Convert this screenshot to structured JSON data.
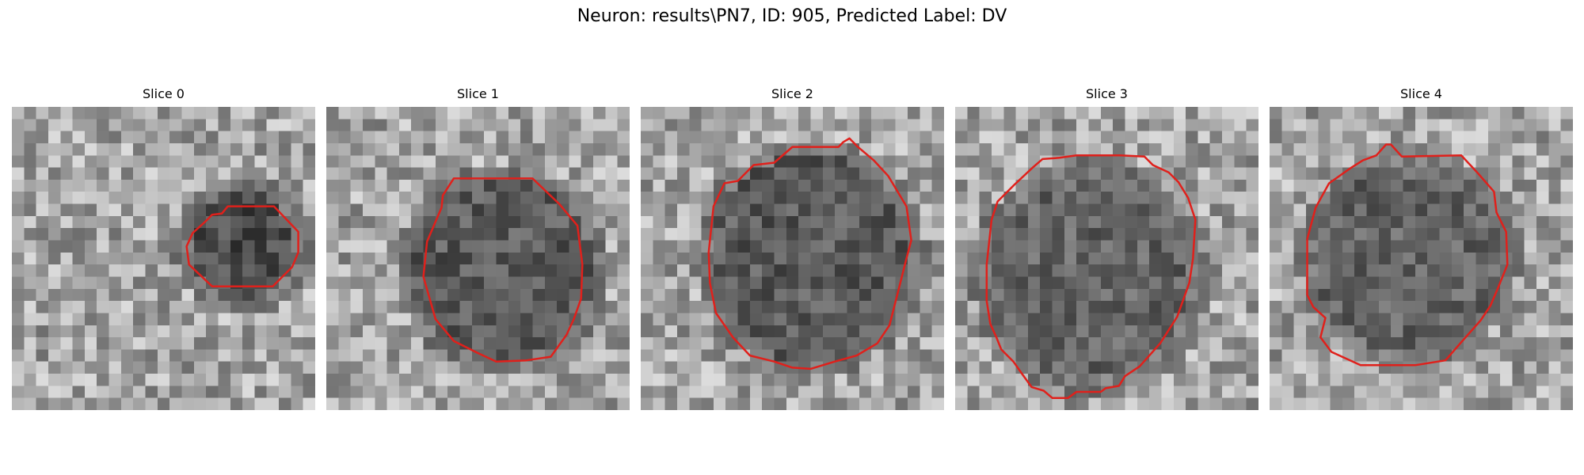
{
  "figure": {
    "title": "Neuron: results\\PN7, ID: 905, Predicted Label: DV",
    "contour_color": "#e0201b",
    "colormap": "gray"
  },
  "slices": [
    {
      "label": "Slice 0",
      "contour": [
        [
          15.9,
          9.5
        ],
        [
          14.9,
          10.4
        ],
        [
          14.4,
          11.5
        ],
        [
          14.6,
          13
        ],
        [
          16.5,
          14.8
        ],
        [
          21.5,
          14.8
        ],
        [
          23.1,
          13.2
        ],
        [
          23.6,
          12
        ],
        [
          23.6,
          10.3
        ],
        [
          21.6,
          8.2
        ],
        [
          17.8,
          8.2
        ],
        [
          17.3,
          8.8
        ],
        [
          16.5,
          8.9
        ]
      ]
    },
    {
      "label": "Slice 1",
      "contour": [
        [
          9.5,
          8.3
        ],
        [
          8.3,
          11.1
        ],
        [
          8,
          14
        ],
        [
          9,
          17.5
        ],
        [
          10.5,
          19.3
        ],
        [
          12.5,
          20.3
        ],
        [
          14,
          21
        ],
        [
          16.5,
          20.9
        ],
        [
          18.5,
          20.6
        ],
        [
          19.8,
          18.8
        ],
        [
          20.4,
          17.5
        ],
        [
          21,
          15.8
        ],
        [
          21.1,
          13
        ],
        [
          20.7,
          9.8
        ],
        [
          19.2,
          8
        ],
        [
          17,
          5.9
        ],
        [
          10.5,
          5.9
        ],
        [
          9.6,
          7.3
        ]
      ]
    },
    {
      "label": "Slice 2",
      "contour": [
        [
          6.9,
          6.3
        ],
        [
          6,
          8.2
        ],
        [
          5.6,
          12
        ],
        [
          5.7,
          14.5
        ],
        [
          6.2,
          17
        ],
        [
          7.6,
          19
        ],
        [
          9,
          20.5
        ],
        [
          11,
          21
        ],
        [
          12.5,
          21.5
        ],
        [
          14,
          21.6
        ],
        [
          16,
          21
        ],
        [
          17.8,
          20.5
        ],
        [
          19.5,
          19.5
        ],
        [
          20.5,
          18
        ],
        [
          21.4,
          14.5
        ],
        [
          21.9,
          12.5
        ],
        [
          22.3,
          11
        ],
        [
          21.9,
          8.2
        ],
        [
          20.4,
          5.7
        ],
        [
          19.2,
          4.4
        ],
        [
          17.9,
          3.3
        ],
        [
          17.2,
          2.6
        ],
        [
          16.7,
          2.9
        ],
        [
          16.3,
          3.3
        ],
        [
          12.5,
          3.3
        ],
        [
          11,
          4.6
        ],
        [
          9.3,
          4.8
        ],
        [
          8,
          6.1
        ]
      ]
    },
    {
      "label": "Slice 3",
      "contour": [
        [
          3.5,
          7.8
        ],
        [
          3,
          9.3
        ],
        [
          2.6,
          13
        ],
        [
          2.6,
          16
        ],
        [
          2.9,
          17.9
        ],
        [
          3.4,
          19
        ],
        [
          3.8,
          20
        ],
        [
          4.8,
          21
        ],
        [
          5.5,
          22
        ],
        [
          6.3,
          23.1
        ],
        [
          7.3,
          23.4
        ],
        [
          8,
          24
        ],
        [
          9.3,
          24
        ],
        [
          10,
          23.5
        ],
        [
          12,
          23.5
        ],
        [
          12.4,
          23.2
        ],
        [
          13.5,
          23
        ],
        [
          14,
          22.2
        ],
        [
          15.2,
          21.4
        ],
        [
          16.9,
          19.5
        ],
        [
          18.3,
          17.3
        ],
        [
          19.3,
          14.5
        ],
        [
          19.6,
          12.5
        ],
        [
          19.8,
          9.3
        ],
        [
          19.2,
          7.5
        ],
        [
          18.4,
          6.2
        ],
        [
          17.6,
          5.4
        ],
        [
          16.3,
          4.8
        ],
        [
          15.6,
          4.1
        ],
        [
          13.6,
          4
        ],
        [
          10,
          4
        ],
        [
          8.6,
          4.2
        ],
        [
          7.2,
          4.3
        ],
        [
          6.4,
          5
        ],
        [
          4.9,
          6.4
        ]
      ]
    },
    {
      "label": "Slice 4",
      "contour": [
        [
          4.9,
          6.3
        ],
        [
          3.8,
          8.3
        ],
        [
          3.1,
          10.9
        ],
        [
          3.1,
          15.5
        ],
        [
          3.6,
          16.5
        ],
        [
          4.6,
          17.4
        ],
        [
          4.2,
          19
        ],
        [
          5.1,
          20.2
        ],
        [
          7.5,
          21.3
        ],
        [
          12,
          21.3
        ],
        [
          14.5,
          20.9
        ],
        [
          15.8,
          19.4
        ],
        [
          17.4,
          17.6
        ],
        [
          18.2,
          16.4
        ],
        [
          18.8,
          15
        ],
        [
          19.6,
          13
        ],
        [
          19.5,
          10.3
        ],
        [
          18.7,
          8.7
        ],
        [
          18.5,
          7
        ],
        [
          17.2,
          5.5
        ],
        [
          15.8,
          4
        ],
        [
          10.9,
          4.1
        ],
        [
          10,
          3.1
        ],
        [
          9.6,
          3.1
        ],
        [
          8.8,
          4
        ],
        [
          7.7,
          4.4
        ],
        [
          6.6,
          5.1
        ]
      ]
    }
  ]
}
